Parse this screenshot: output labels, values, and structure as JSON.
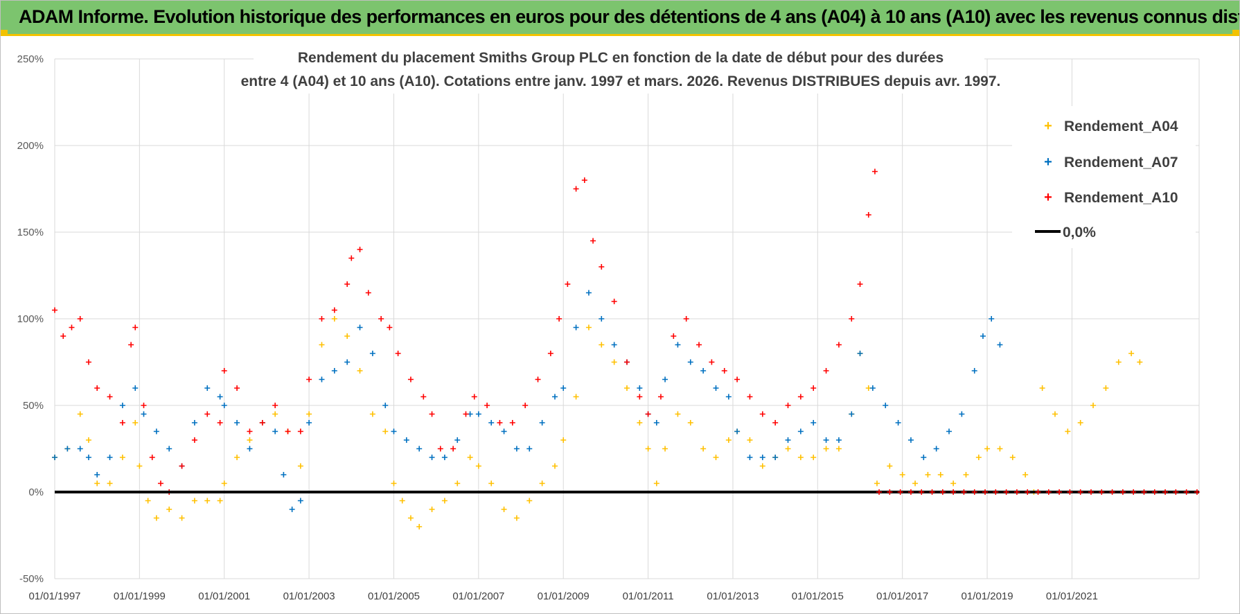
{
  "banner": {
    "title": "ADAM Informe. Evolution historique des performances en euros pour des détentions de 4 ans (A04) à 10 ans (A10) avec les revenus connus distribués"
  },
  "colors": {
    "banner_bg": "#7cc46e",
    "banner_accent": "#f2c200",
    "A04": "#ffc000",
    "A07": "#0070c0",
    "A10": "#ff0000",
    "zero": "#000000",
    "grid": "#d9d9d9"
  },
  "chart_data": {
    "type": "scatter",
    "title_lines": [
      "Rendement du placement Smiths Group PLC en fonction de la date de début pour des durées",
      "entre 4 (A04) et 10 ans (A10). Cotations entre janv. 1997 et mars. 2026. Revenus DISTRIBUES depuis avr. 1997."
    ],
    "xlabel": "",
    "ylabel": "",
    "x_range": [
      1997.0,
      2024.0
    ],
    "ylim": [
      -50,
      250
    ],
    "y_ticks": [
      "-50%",
      "0%",
      "50%",
      "100%",
      "150%",
      "200%",
      "250%"
    ],
    "x_ticks": [
      "01/01/1997",
      "01/01/1999",
      "01/01/2001",
      "01/01/2003",
      "01/01/2005",
      "01/01/2007",
      "01/01/2009",
      "01/01/2011",
      "01/01/2013",
      "01/01/2015",
      "01/01/2017",
      "01/01/2019",
      "01/01/2021"
    ],
    "marker": "+",
    "legend_position": "right",
    "series": [
      {
        "name": "Rendement_A04",
        "color": "#ffc000",
        "points": [
          [
            1997.0,
            20
          ],
          [
            1997.3,
            25
          ],
          [
            1997.6,
            45
          ],
          [
            1997.8,
            30
          ],
          [
            1998.0,
            5
          ],
          [
            1998.3,
            5
          ],
          [
            1998.6,
            20
          ],
          [
            1998.9,
            40
          ],
          [
            1999.0,
            15
          ],
          [
            1999.2,
            -5
          ],
          [
            1999.4,
            -15
          ],
          [
            1999.7,
            -10
          ],
          [
            2000.0,
            -15
          ],
          [
            2000.3,
            -5
          ],
          [
            2000.6,
            -5
          ],
          [
            2000.9,
            -5
          ],
          [
            2001.0,
            5
          ],
          [
            2001.3,
            20
          ],
          [
            2001.6,
            30
          ],
          [
            2001.9,
            40
          ],
          [
            2002.2,
            45
          ],
          [
            2002.5,
            35
          ],
          [
            2002.8,
            15
          ],
          [
            2003.0,
            45
          ],
          [
            2003.3,
            85
          ],
          [
            2003.6,
            100
          ],
          [
            2003.9,
            90
          ],
          [
            2004.2,
            70
          ],
          [
            2004.5,
            45
          ],
          [
            2004.8,
            35
          ],
          [
            2005.0,
            5
          ],
          [
            2005.2,
            -5
          ],
          [
            2005.4,
            -15
          ],
          [
            2005.6,
            -20
          ],
          [
            2005.9,
            -10
          ],
          [
            2006.2,
            -5
          ],
          [
            2006.5,
            5
          ],
          [
            2006.8,
            20
          ],
          [
            2007.0,
            15
          ],
          [
            2007.3,
            5
          ],
          [
            2007.6,
            -10
          ],
          [
            2007.9,
            -15
          ],
          [
            2008.2,
            -5
          ],
          [
            2008.5,
            5
          ],
          [
            2008.8,
            15
          ],
          [
            2009.0,
            30
          ],
          [
            2009.3,
            55
          ],
          [
            2009.6,
            95
          ],
          [
            2009.9,
            85
          ],
          [
            2010.2,
            75
          ],
          [
            2010.5,
            60
          ],
          [
            2010.8,
            40
          ],
          [
            2011.0,
            25
          ],
          [
            2011.2,
            5
          ],
          [
            2011.4,
            25
          ],
          [
            2011.7,
            45
          ],
          [
            2012.0,
            40
          ],
          [
            2012.3,
            25
          ],
          [
            2012.6,
            20
          ],
          [
            2012.9,
            30
          ],
          [
            2013.1,
            35
          ],
          [
            2013.4,
            30
          ],
          [
            2013.7,
            15
          ],
          [
            2014.0,
            20
          ],
          [
            2014.3,
            25
          ],
          [
            2014.6,
            20
          ],
          [
            2014.9,
            20
          ],
          [
            2015.2,
            25
          ],
          [
            2015.5,
            25
          ],
          [
            2015.8,
            45
          ],
          [
            2016.0,
            80
          ],
          [
            2016.2,
            60
          ],
          [
            2016.4,
            5
          ],
          [
            2016.7,
            15
          ],
          [
            2017.0,
            10
          ],
          [
            2017.3,
            5
          ],
          [
            2017.6,
            10
          ],
          [
            2017.9,
            10
          ],
          [
            2018.2,
            5
          ],
          [
            2018.5,
            10
          ],
          [
            2018.8,
            20
          ],
          [
            2019.0,
            25
          ],
          [
            2019.3,
            25
          ],
          [
            2019.6,
            20
          ],
          [
            2019.9,
            10
          ],
          [
            2020.1,
            0
          ],
          [
            2020.3,
            60
          ],
          [
            2020.6,
            45
          ],
          [
            2020.9,
            35
          ],
          [
            2021.2,
            40
          ],
          [
            2021.5,
            50
          ],
          [
            2021.8,
            60
          ],
          [
            2022.1,
            75
          ],
          [
            2022.4,
            80
          ],
          [
            2022.6,
            75
          ]
        ]
      },
      {
        "name": "Rendement_A07",
        "color": "#0070c0",
        "points": [
          [
            1997.0,
            20
          ],
          [
            1997.3,
            25
          ],
          [
            1997.6,
            25
          ],
          [
            1997.8,
            20
          ],
          [
            1998.0,
            10
          ],
          [
            1998.3,
            20
          ],
          [
            1998.6,
            50
          ],
          [
            1998.9,
            60
          ],
          [
            1999.1,
            45
          ],
          [
            1999.4,
            35
          ],
          [
            1999.7,
            25
          ],
          [
            2000.0,
            15
          ],
          [
            2000.3,
            40
          ],
          [
            2000.6,
            60
          ],
          [
            2000.9,
            55
          ],
          [
            2001.0,
            50
          ],
          [
            2001.3,
            40
          ],
          [
            2001.6,
            25
          ],
          [
            2001.9,
            40
          ],
          [
            2002.2,
            35
          ],
          [
            2002.4,
            10
          ],
          [
            2002.6,
            -10
          ],
          [
            2002.8,
            -5
          ],
          [
            2003.0,
            40
          ],
          [
            2003.3,
            65
          ],
          [
            2003.6,
            70
          ],
          [
            2003.9,
            75
          ],
          [
            2004.2,
            95
          ],
          [
            2004.5,
            80
          ],
          [
            2004.8,
            50
          ],
          [
            2005.0,
            35
          ],
          [
            2005.3,
            30
          ],
          [
            2005.6,
            25
          ],
          [
            2005.9,
            20
          ],
          [
            2006.2,
            20
          ],
          [
            2006.5,
            30
          ],
          [
            2006.8,
            45
          ],
          [
            2007.0,
            45
          ],
          [
            2007.3,
            40
          ],
          [
            2007.6,
            35
          ],
          [
            2007.9,
            25
          ],
          [
            2008.2,
            25
          ],
          [
            2008.5,
            40
          ],
          [
            2008.8,
            55
          ],
          [
            2009.0,
            60
          ],
          [
            2009.3,
            95
          ],
          [
            2009.6,
            115
          ],
          [
            2009.9,
            100
          ],
          [
            2010.2,
            85
          ],
          [
            2010.5,
            75
          ],
          [
            2010.8,
            60
          ],
          [
            2011.0,
            45
          ],
          [
            2011.2,
            40
          ],
          [
            2011.4,
            65
          ],
          [
            2011.7,
            85
          ],
          [
            2012.0,
            75
          ],
          [
            2012.3,
            70
          ],
          [
            2012.6,
            60
          ],
          [
            2012.9,
            55
          ],
          [
            2013.1,
            35
          ],
          [
            2013.4,
            20
          ],
          [
            2013.7,
            20
          ],
          [
            2014.0,
            20
          ],
          [
            2014.3,
            30
          ],
          [
            2014.6,
            35
          ],
          [
            2014.9,
            40
          ],
          [
            2015.2,
            30
          ],
          [
            2015.5,
            30
          ],
          [
            2015.8,
            45
          ],
          [
            2016.0,
            80
          ],
          [
            2016.3,
            60
          ],
          [
            2016.6,
            50
          ],
          [
            2016.9,
            40
          ],
          [
            2017.2,
            30
          ],
          [
            2017.5,
            20
          ],
          [
            2017.8,
            25
          ],
          [
            2018.1,
            35
          ],
          [
            2018.4,
            45
          ],
          [
            2018.7,
            70
          ],
          [
            2018.9,
            90
          ],
          [
            2019.1,
            100
          ],
          [
            2019.3,
            85
          ]
        ]
      },
      {
        "name": "Rendement_A10",
        "color": "#ff0000",
        "points": [
          [
            1997.0,
            105
          ],
          [
            1997.2,
            90
          ],
          [
            1997.4,
            95
          ],
          [
            1997.6,
            100
          ],
          [
            1997.8,
            75
          ],
          [
            1998.0,
            60
          ],
          [
            1998.3,
            55
          ],
          [
            1998.6,
            40
          ],
          [
            1998.8,
            85
          ],
          [
            1998.9,
            95
          ],
          [
            1999.1,
            50
          ],
          [
            1999.3,
            20
          ],
          [
            1999.5,
            5
          ],
          [
            1999.7,
            0
          ],
          [
            2000.0,
            15
          ],
          [
            2000.3,
            30
          ],
          [
            2000.6,
            45
          ],
          [
            2000.9,
            40
          ],
          [
            2001.0,
            70
          ],
          [
            2001.3,
            60
          ],
          [
            2001.6,
            35
          ],
          [
            2001.9,
            40
          ],
          [
            2002.2,
            50
          ],
          [
            2002.5,
            35
          ],
          [
            2002.8,
            35
          ],
          [
            2003.0,
            65
          ],
          [
            2003.3,
            100
          ],
          [
            2003.6,
            105
          ],
          [
            2003.9,
            120
          ],
          [
            2004.0,
            135
          ],
          [
            2004.2,
            140
          ],
          [
            2004.4,
            115
          ],
          [
            2004.7,
            100
          ],
          [
            2004.9,
            95
          ],
          [
            2005.1,
            80
          ],
          [
            2005.4,
            65
          ],
          [
            2005.7,
            55
          ],
          [
            2005.9,
            45
          ],
          [
            2006.1,
            25
          ],
          [
            2006.4,
            25
          ],
          [
            2006.7,
            45
          ],
          [
            2006.9,
            55
          ],
          [
            2007.2,
            50
          ],
          [
            2007.5,
            40
          ],
          [
            2007.8,
            40
          ],
          [
            2008.1,
            50
          ],
          [
            2008.4,
            65
          ],
          [
            2008.7,
            80
          ],
          [
            2008.9,
            100
          ],
          [
            2009.1,
            120
          ],
          [
            2009.3,
            175
          ],
          [
            2009.5,
            180
          ],
          [
            2009.7,
            145
          ],
          [
            2009.9,
            130
          ],
          [
            2010.2,
            110
          ],
          [
            2010.5,
            75
          ],
          [
            2010.8,
            55
          ],
          [
            2011.0,
            45
          ],
          [
            2011.3,
            55
          ],
          [
            2011.6,
            90
          ],
          [
            2011.9,
            100
          ],
          [
            2012.2,
            85
          ],
          [
            2012.5,
            75
          ],
          [
            2012.8,
            70
          ],
          [
            2013.1,
            65
          ],
          [
            2013.4,
            55
          ],
          [
            2013.7,
            45
          ],
          [
            2014.0,
            40
          ],
          [
            2014.3,
            50
          ],
          [
            2014.6,
            55
          ],
          [
            2014.9,
            60
          ],
          [
            2015.2,
            70
          ],
          [
            2015.5,
            85
          ],
          [
            2015.8,
            100
          ],
          [
            2016.0,
            120
          ],
          [
            2016.2,
            160
          ],
          [
            2016.35,
            185
          ]
        ]
      }
    ],
    "zero_line": {
      "name": "0,0%",
      "value": 0,
      "from": 1997.0,
      "to": 2024.0
    },
    "zero_cluster": {
      "series": "Rendement_A10",
      "from": 2016.45,
      "to": 2024.0,
      "value": 0
    }
  }
}
